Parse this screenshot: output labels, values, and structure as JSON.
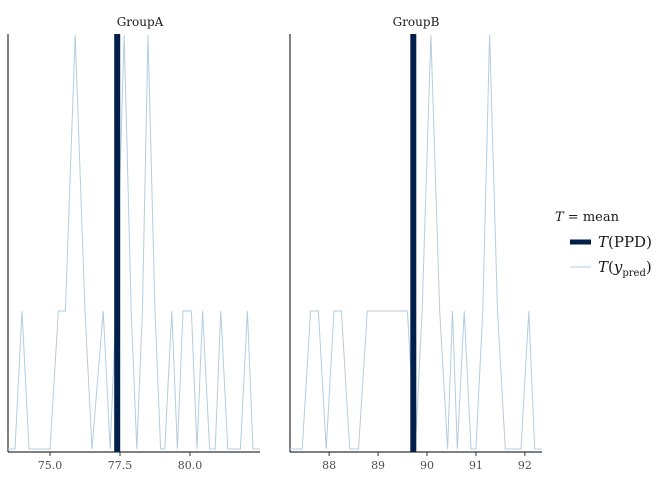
{
  "chart_data": {
    "type": "line",
    "facets": [
      {
        "name": "GroupA",
        "xlim": [
          73.5,
          82.5
        ],
        "ticks": [
          75.0,
          77.5,
          80.0
        ],
        "tick_labels": [
          "75.0",
          "77.5",
          "80.0"
        ],
        "ymax": 3,
        "ppd_mean": 77.4,
        "series": [
          [
            73.5,
            0
          ],
          [
            73.75,
            0
          ],
          [
            74.0,
            1
          ],
          [
            74.25,
            0
          ],
          [
            75.0,
            0
          ],
          [
            75.3,
            1
          ],
          [
            75.55,
            1
          ],
          [
            75.9,
            3
          ],
          [
            76.25,
            1
          ],
          [
            76.5,
            0
          ],
          [
            76.9,
            1
          ],
          [
            77.15,
            0
          ],
          [
            77.35,
            1
          ],
          [
            77.65,
            3
          ],
          [
            77.9,
            1
          ],
          [
            78.1,
            0
          ],
          [
            78.3,
            1
          ],
          [
            78.5,
            3
          ],
          [
            78.75,
            1
          ],
          [
            78.95,
            0
          ],
          [
            79.1,
            0
          ],
          [
            79.35,
            1
          ],
          [
            79.55,
            0
          ],
          [
            79.75,
            1
          ],
          [
            80.05,
            1
          ],
          [
            80.25,
            0
          ],
          [
            80.45,
            1
          ],
          [
            80.7,
            0
          ],
          [
            80.9,
            0
          ],
          [
            81.1,
            1
          ],
          [
            81.35,
            0
          ],
          [
            81.8,
            0
          ],
          [
            82.05,
            1
          ],
          [
            82.25,
            0
          ],
          [
            82.5,
            0
          ]
        ]
      },
      {
        "name": "GroupB",
        "xlim": [
          87.2,
          92.35
        ],
        "ticks": [
          88,
          89,
          90,
          91,
          92
        ],
        "tick_labels": [
          "88",
          "89",
          "90",
          "91",
          "92"
        ],
        "ymax": 3,
        "ppd_mean": 89.72,
        "series": [
          [
            87.2,
            0
          ],
          [
            87.45,
            0
          ],
          [
            87.62,
            1
          ],
          [
            87.78,
            1
          ],
          [
            87.94,
            0
          ],
          [
            88.1,
            1
          ],
          [
            88.25,
            1
          ],
          [
            88.42,
            0
          ],
          [
            88.6,
            0
          ],
          [
            88.78,
            1
          ],
          [
            89.6,
            1
          ],
          [
            89.76,
            0
          ],
          [
            89.9,
            1
          ],
          [
            90.08,
            3
          ],
          [
            90.26,
            1
          ],
          [
            90.42,
            0
          ],
          [
            90.52,
            1
          ],
          [
            90.62,
            0
          ],
          [
            90.76,
            1
          ],
          [
            90.9,
            0
          ],
          [
            91.0,
            0
          ],
          [
            91.14,
            1
          ],
          [
            91.28,
            3
          ],
          [
            91.44,
            1
          ],
          [
            91.6,
            0
          ],
          [
            91.92,
            0
          ],
          [
            92.08,
            1
          ],
          [
            92.2,
            0
          ],
          [
            92.35,
            0
          ]
        ]
      }
    ],
    "legend": {
      "title": "T = mean",
      "placement": "right",
      "entries": [
        {
          "label": "T(PPD)",
          "color": "#011f4b"
        },
        {
          "label": "T(y_pred)",
          "color": "#b3cde0"
        }
      ]
    },
    "grid": false
  }
}
